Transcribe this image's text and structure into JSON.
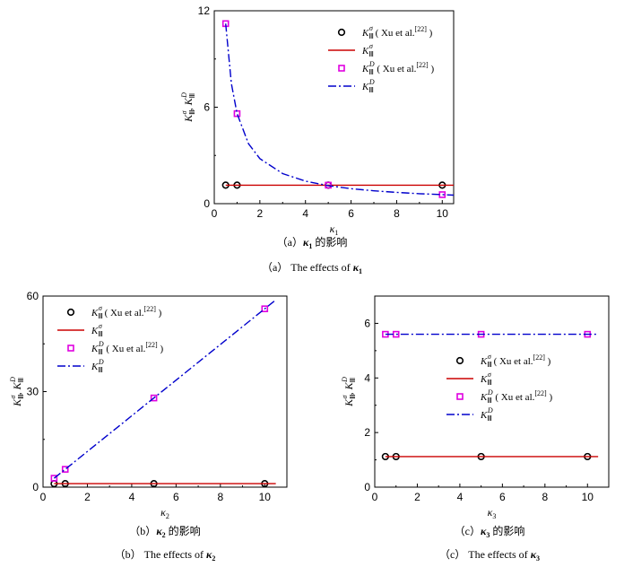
{
  "legend_labels": {
    "k_sigma_xu": "( Xu et al.",
    "k_d_xu": "( Xu et al.",
    "ref": "[22]",
    "close": ")",
    "sym_k": "K",
    "sub3": "Ⅲ",
    "sup_sigma": "σ",
    "sup_d": "D"
  },
  "colors": {
    "sigma": "#cc0000",
    "d": "#0000cc",
    "marker_sigma": "#000000",
    "marker_d": "#e000e0"
  },
  "chart_data": [
    {
      "type": "line",
      "id": "a",
      "caption_cn": "（a）κ₁ 的影响",
      "caption_cn_pre": "（a）",
      "caption_cn_sym": "κ",
      "caption_cn_sub": "1",
      "caption_cn_post": " 的影响",
      "caption_en_pre": "（a） The effects of ",
      "caption_en_sym": "κ",
      "caption_en_sub": "1",
      "xlabel": "κ",
      "xlabel_sub": "1",
      "ylabel": "K",
      "xlim": [
        0,
        10.5
      ],
      "ylim": [
        0,
        12
      ],
      "xticks": [
        0,
        2,
        4,
        6,
        8,
        10
      ],
      "yticks": [
        0,
        6,
        12
      ],
      "legend_pos": "top-right",
      "series": [
        {
          "name": "K_III^σ (Xu et al.[22])",
          "kind": "marker-circle",
          "x": [
            0.5,
            1,
            5,
            10
          ],
          "y": [
            1.15,
            1.15,
            1.15,
            1.15
          ]
        },
        {
          "name": "K_III^σ",
          "kind": "line-solid",
          "x": [
            0.5,
            10.5
          ],
          "y": [
            1.15,
            1.15
          ]
        },
        {
          "name": "K_III^D (Xu et al.[22])",
          "kind": "marker-square",
          "x": [
            0.5,
            1,
            5,
            10
          ],
          "y": [
            11.2,
            5.6,
            1.15,
            0.56
          ]
        },
        {
          "name": "K_III^D",
          "kind": "line-dashdot",
          "x": [
            0.5,
            0.75,
            1,
            1.5,
            2,
            3,
            4,
            5,
            6,
            7,
            8,
            9,
            10,
            10.5
          ],
          "y": [
            11.2,
            7.47,
            5.6,
            3.73,
            2.8,
            1.87,
            1.4,
            1.12,
            0.93,
            0.8,
            0.7,
            0.62,
            0.56,
            0.53
          ]
        }
      ]
    },
    {
      "type": "line",
      "id": "b",
      "caption_cn_pre": "（b）",
      "caption_cn_sym": "κ",
      "caption_cn_sub": "2",
      "caption_cn_post": " 的影响",
      "caption_en_pre": "（b） The effects of ",
      "caption_en_sym": "κ",
      "caption_en_sub": "2",
      "xlabel": "κ",
      "xlabel_sub": "2",
      "ylabel": "K",
      "xlim": [
        0,
        11
      ],
      "ylim": [
        0,
        60
      ],
      "xticks": [
        0,
        2,
        4,
        6,
        8,
        10
      ],
      "yticks": [
        0,
        30,
        60
      ],
      "legend_pos": "top-left",
      "series": [
        {
          "name": "K_III^σ (Xu et al.[22])",
          "kind": "marker-circle",
          "x": [
            0.5,
            1,
            5,
            10
          ],
          "y": [
            1.1,
            1.1,
            1.1,
            1.1
          ]
        },
        {
          "name": "K_III^σ",
          "kind": "line-solid",
          "x": [
            0.5,
            10.5
          ],
          "y": [
            1.1,
            1.1
          ]
        },
        {
          "name": "K_III^D (Xu et al.[22])",
          "kind": "marker-square",
          "x": [
            0.5,
            1,
            5,
            10
          ],
          "y": [
            2.8,
            5.6,
            28,
            56
          ]
        },
        {
          "name": "K_III^D",
          "kind": "line-dashdot",
          "x": [
            0.5,
            10.5
          ],
          "y": [
            2.8,
            58.8
          ]
        }
      ]
    },
    {
      "type": "line",
      "id": "c",
      "caption_cn_pre": "（c）",
      "caption_cn_sym": "κ",
      "caption_cn_sub": "3",
      "caption_cn_post": " 的影响",
      "caption_en_pre": "（c） The effects of ",
      "caption_en_sym": "κ",
      "caption_en_sub": "3",
      "xlabel": "κ",
      "xlabel_sub": "3",
      "ylabel": "K",
      "xlim": [
        0,
        11
      ],
      "ylim": [
        0,
        7
      ],
      "xticks": [
        0,
        2,
        4,
        6,
        8,
        10
      ],
      "yticks": [
        0,
        2,
        4,
        6
      ],
      "legend_pos": "center",
      "series": [
        {
          "name": "K_III^σ (Xu et al.[22])",
          "kind": "marker-circle",
          "x": [
            0.5,
            1,
            5,
            10
          ],
          "y": [
            1.12,
            1.12,
            1.12,
            1.12
          ]
        },
        {
          "name": "K_III^σ",
          "kind": "line-solid",
          "x": [
            0.5,
            10.5
          ],
          "y": [
            1.12,
            1.12
          ]
        },
        {
          "name": "K_III^D (Xu et al.[22])",
          "kind": "marker-square",
          "x": [
            0.5,
            1,
            5,
            10
          ],
          "y": [
            5.6,
            5.6,
            5.6,
            5.6
          ]
        },
        {
          "name": "K_III^D",
          "kind": "line-dashdot",
          "x": [
            0.5,
            10.5
          ],
          "y": [
            5.6,
            5.6
          ]
        }
      ]
    }
  ]
}
